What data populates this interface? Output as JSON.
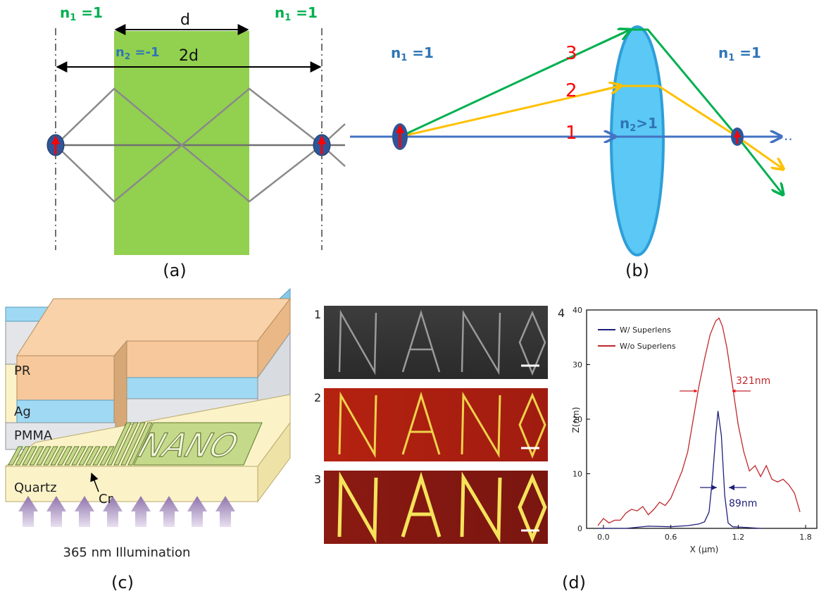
{
  "panel_a": {
    "n1_left": "n",
    "n1_left_sub": "1",
    "n1_left_eq": " =1",
    "n1_right": "n",
    "n1_right_sub": "1",
    "n1_right_eq": " =1",
    "n2": "n",
    "n2_sub": "2",
    "n2_eq": " =-1",
    "d_label": "d",
    "twod_label": "2d",
    "caption": "(a)",
    "colors": {
      "slab": "#92d050",
      "n_label_green": "#00b050",
      "n_label_blue": "#2e75b6",
      "ray": "#808080",
      "source": "#2f4f8f",
      "arrow": "#ff0000"
    }
  },
  "panel_b": {
    "n1_left": "n",
    "n1_left_sub": "1",
    "n1_left_eq": " =1",
    "n1_right": "n",
    "n1_right_sub": "1",
    "n1_right_eq": " =1",
    "n2": "n",
    "n2_sub": "2",
    "n2_eq": ">1",
    "ray1": "1",
    "ray2": "2",
    "ray3": "3",
    "dots": "..",
    "caption": "(b)",
    "colors": {
      "lens": "#5bc8f5",
      "ray_blue": "#4472c4",
      "ray_yellow": "#ffc000",
      "ray_green": "#00b050",
      "ray_label": "#ff0000"
    }
  },
  "panel_c": {
    "pr": "PR",
    "ag": "Ag",
    "pmma": "PMMA",
    "quartz": "Quartz",
    "cr": "Cr",
    "nano": "NANO",
    "illumination": "365 nm Illumination",
    "caption": "(c)",
    "colors": {
      "pr": "#f7c89b",
      "ag": "#9fd9f4",
      "pmma": "#e3e5e8",
      "quartz": "#fbf2c8",
      "cr": "#c4d98a",
      "arrow": "#9c86b5"
    }
  },
  "panel_d_images": {
    "row1": "1",
    "row2": "2",
    "row3": "3",
    "corner_label": "4",
    "caption": "(d)"
  },
  "chart_data": {
    "type": "line",
    "xlabel": "X (μm)",
    "ylabel": "Z(nm)",
    "xlim": [
      -0.15,
      1.9
    ],
    "ylim": [
      0,
      40
    ],
    "xticks": [
      "0.0",
      "0.6",
      "1.2",
      "1.8"
    ],
    "yticks": [
      "0",
      "10",
      "20",
      "30",
      "40"
    ],
    "legend_position": "top-left",
    "series": [
      {
        "name": "W/ Superlens",
        "color": "#1f1f7a",
        "x": [
          -0.05,
          0.2,
          0.4,
          0.6,
          0.75,
          0.85,
          0.9,
          0.94,
          0.97,
          1.0,
          1.02,
          1.05,
          1.08,
          1.11,
          1.15,
          1.25,
          1.4
        ],
        "y": [
          0,
          0,
          0.4,
          0.3,
          0.5,
          0.8,
          1.2,
          3.0,
          9.0,
          17.0,
          21.5,
          17.0,
          6.0,
          1.0,
          0.3,
          0.2,
          0
        ]
      },
      {
        "name": "W/o Superlens",
        "color": "#c0282d",
        "x": [
          -0.05,
          0.0,
          0.05,
          0.1,
          0.15,
          0.2,
          0.25,
          0.3,
          0.35,
          0.4,
          0.45,
          0.5,
          0.55,
          0.6,
          0.65,
          0.7,
          0.75,
          0.8,
          0.85,
          0.9,
          0.95,
          1.0,
          1.03,
          1.06,
          1.1,
          1.15,
          1.2,
          1.25,
          1.3,
          1.35,
          1.4,
          1.45,
          1.5,
          1.55,
          1.6,
          1.65,
          1.7,
          1.75
        ],
        "y": [
          0.5,
          1.8,
          1.0,
          1.5,
          1.5,
          2.8,
          3.5,
          3.2,
          4.0,
          2.5,
          3.5,
          4.8,
          4.2,
          5.5,
          8.0,
          10.5,
          14.0,
          20.0,
          26.0,
          31.0,
          35.5,
          38.0,
          38.5,
          37.0,
          33.0,
          26.0,
          19.0,
          14.0,
          10.5,
          11.5,
          9.5,
          11.5,
          9.0,
          8.5,
          9.0,
          8.0,
          6.5,
          3.0
        ]
      }
    ],
    "annotations": [
      "321nm",
      "89nm"
    ]
  }
}
